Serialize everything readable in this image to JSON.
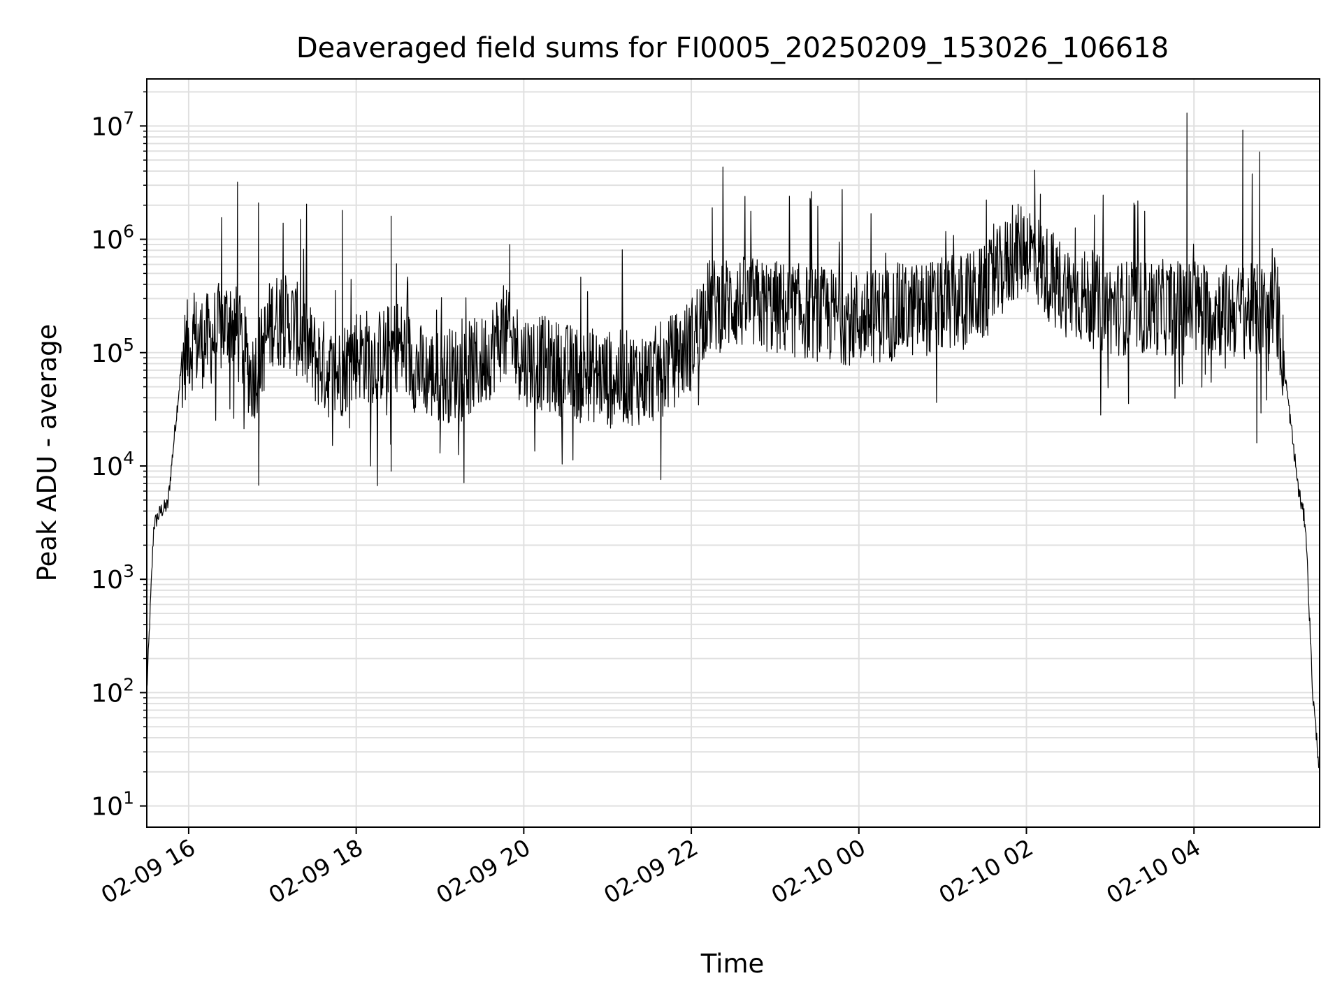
{
  "chart_data": {
    "type": "line",
    "title": "Deaveraged field sums for FI0005_20250209_153026_106618",
    "xlabel": "Time",
    "ylabel": "Peak ADU - average",
    "yscale": "log",
    "ylim": [
      6.5,
      26000000
    ],
    "xlim": [
      "2025-02-09 15:30",
      "2025-02-10 05:30"
    ],
    "grid": true,
    "line_color": "#000000",
    "x_ticks": [
      "02-09 16",
      "02-09 18",
      "02-09 20",
      "02-09 22",
      "02-10 00",
      "02-10 02",
      "02-10 04"
    ],
    "x_tick_values": [
      "2025-02-09 16:00",
      "2025-02-09 18:00",
      "2025-02-09 20:00",
      "2025-02-09 22:00",
      "2025-02-10 00:00",
      "2025-02-10 02:00",
      "2025-02-10 04:00"
    ],
    "y_ticks": [
      {
        "base": "10",
        "exp": "1",
        "value": 10
      },
      {
        "base": "10",
        "exp": "2",
        "value": 100
      },
      {
        "base": "10",
        "exp": "3",
        "value": 1000
      },
      {
        "base": "10",
        "exp": "4",
        "value": 10000
      },
      {
        "base": "10",
        "exp": "5",
        "value": 100000
      },
      {
        "base": "10",
        "exp": "6",
        "value": 1000000
      },
      {
        "base": "10",
        "exp": "7",
        "value": 10000000
      }
    ],
    "series": [
      {
        "x": [
          "2025-02-09 15:30",
          "2025-02-09 15:35",
          "2025-02-09 15:40",
          "2025-02-09 15:45",
          "2025-02-09 15:50",
          "2025-02-09 15:55",
          "2025-02-09 16:00",
          "2025-02-09 16:15",
          "2025-02-09 16:30",
          "2025-02-09 16:40",
          "2025-02-09 16:45",
          "2025-02-09 16:50",
          "2025-02-09 17:00",
          "2025-02-09 17:15",
          "2025-02-09 17:30",
          "2025-02-09 17:45",
          "2025-02-09 18:00",
          "2025-02-09 18:15",
          "2025-02-09 18:30",
          "2025-02-09 18:45",
          "2025-02-09 19:00",
          "2025-02-09 19:30",
          "2025-02-09 19:45",
          "2025-02-09 20:00",
          "2025-02-09 20:30",
          "2025-02-09 21:00",
          "2025-02-09 21:30",
          "2025-02-09 21:50",
          "2025-02-09 22:00",
          "2025-02-09 22:10",
          "2025-02-09 22:30",
          "2025-02-09 23:00",
          "2025-02-09 23:30",
          "2025-02-10 00:00",
          "2025-02-10 00:30",
          "2025-02-10 01:00",
          "2025-02-10 01:30",
          "2025-02-10 01:50",
          "2025-02-10 02:00",
          "2025-02-10 02:15",
          "2025-02-10 02:30",
          "2025-02-10 03:00",
          "2025-02-10 03:30",
          "2025-02-10 04:00",
          "2025-02-10 04:30",
          "2025-02-10 05:00",
          "2025-02-10 05:10",
          "2025-02-10 05:15",
          "2025-02-10 05:20",
          "2025-02-10 05:25",
          "2025-02-10 05:30"
        ],
        "y": [
          100,
          3000,
          4000,
          4500,
          20000,
          80000,
          120000,
          130000,
          200000,
          100000,
          60000,
          80000,
          200000,
          180000,
          90000,
          60000,
          100000,
          90000,
          120000,
          70000,
          60000,
          80000,
          150000,
          90000,
          70000,
          60000,
          60000,
          90000,
          120000,
          250000,
          280000,
          250000,
          220000,
          200000,
          230000,
          260000,
          330000,
          700000,
          900000,
          500000,
          350000,
          250000,
          250000,
          250000,
          230000,
          230000,
          20000,
          6000,
          3000,
          100,
          20
        ],
        "peaks": [
          {
            "x": "2025-02-09 16:35",
            "y": 3200000
          },
          {
            "x": "2025-02-09 16:50",
            "y": 2100000
          },
          {
            "x": "2025-02-09 17:20",
            "y": 1500000
          },
          {
            "x": "2025-02-09 17:50",
            "y": 1800000
          },
          {
            "x": "2025-02-09 18:25",
            "y": 1600000
          },
          {
            "x": "2025-02-09 19:50",
            "y": 900000
          },
          {
            "x": "2025-02-09 22:15",
            "y": 1900000
          },
          {
            "x": "2025-02-09 23:25",
            "y": 2300000
          },
          {
            "x": "2025-02-10 01:50",
            "y": 2000000
          },
          {
            "x": "2025-02-10 02:10",
            "y": 2500000
          },
          {
            "x": "2025-02-10 03:55",
            "y": 13000000
          },
          {
            "x": "2025-02-10 04:35",
            "y": 9200000
          },
          {
            "x": "2025-02-10 04:47",
            "y": 5900000
          }
        ],
        "dips": [
          {
            "x": "2025-02-09 18:25",
            "y": 9000
          },
          {
            "x": "2025-02-09 19:00",
            "y": 13000
          },
          {
            "x": "2025-02-10 04:45",
            "y": 16000
          }
        ]
      }
    ]
  }
}
